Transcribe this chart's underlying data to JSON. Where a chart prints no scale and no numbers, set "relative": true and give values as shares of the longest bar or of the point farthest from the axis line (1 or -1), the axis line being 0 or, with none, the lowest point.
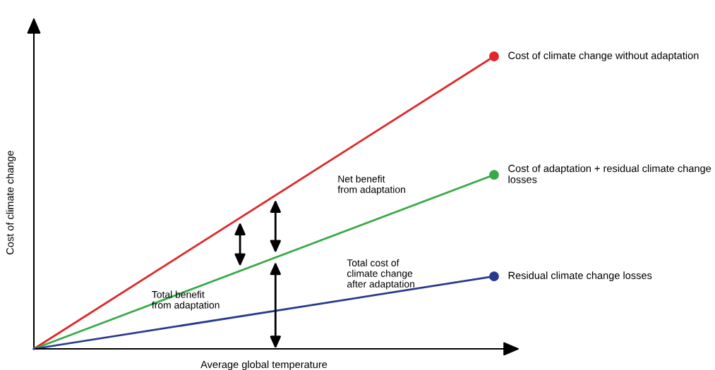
{
  "chart_data": {
    "type": "line",
    "relative": true,
    "xlabel": "Average global temperature",
    "ylabel": "Cost of climate change",
    "categories": [
      null,
      null
    ],
    "marker": "circle",
    "line_style": "solid",
    "series": [
      {
        "name": "Cost of climate change without adaptation",
        "color": "#e0262b",
        "values": [
          0,
          1
        ]
      },
      {
        "name": "Cost of adaptation + residual climate change losses",
        "color": "#3aaa49",
        "values": [
          0,
          0.595
        ]
      },
      {
        "name": "Residual climate change losses",
        "color": "#283a8f",
        "values": [
          0,
          0.248
        ]
      }
    ],
    "annotations": [
      "Net benefit\nfrom adaptation",
      "Total benefit\nfrom adaptation",
      "Total cost of\nclimate change\nafter adaptation"
    ]
  }
}
